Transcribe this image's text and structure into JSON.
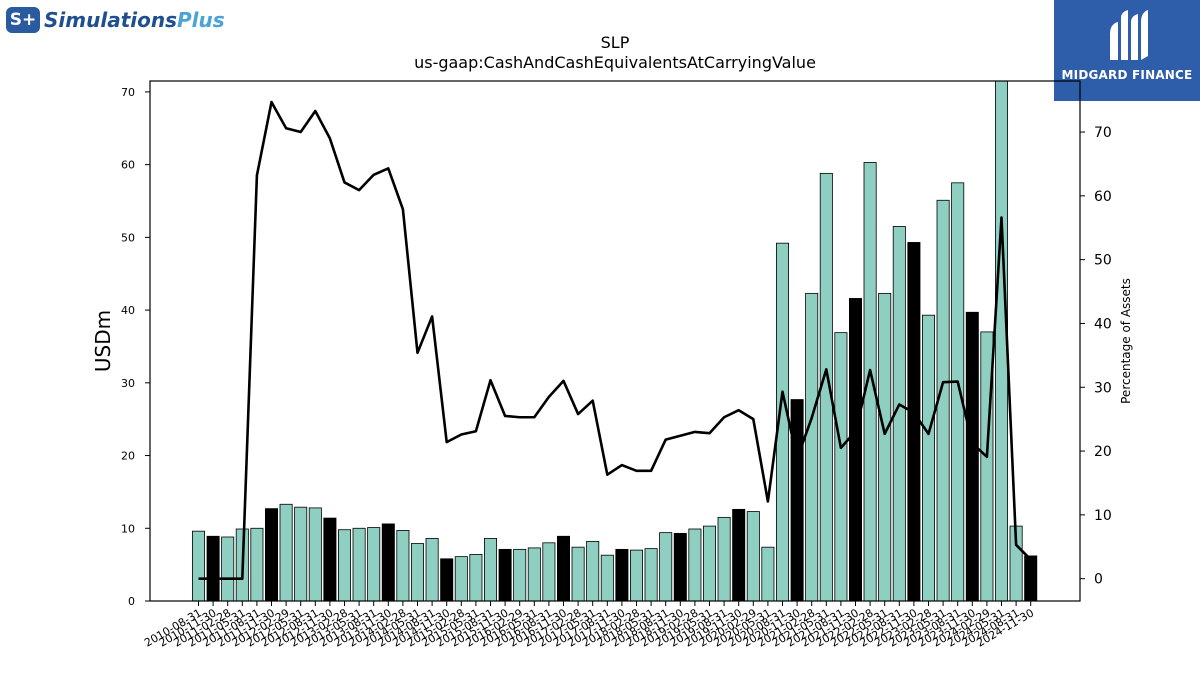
{
  "logos": {
    "left": {
      "badge_text": "S+",
      "name_main": "Simulations",
      "name_accent": "Plus"
    },
    "right": {
      "name": "MIDGARD FINANCE"
    }
  },
  "colors": {
    "bar": "#8ecfc2",
    "bar_highlight": "#000000",
    "line": "#000000",
    "accent_logo": "#2e5daa"
  },
  "chart_data": {
    "type": "bar",
    "title": "SLP",
    "subtitle": "us-gaap:CashAndCashEquivalentsAtCarryingValue",
    "ylabel": "USDm",
    "y2label": "Percentage of Assets",
    "ylim": [
      0,
      71.5
    ],
    "y2lim": [
      -3.5,
      78
    ],
    "yticks": [
      0,
      10,
      20,
      30,
      40,
      50,
      60,
      70
    ],
    "y2ticks": [
      0,
      10,
      20,
      30,
      40,
      50,
      60,
      70
    ],
    "categories": [
      "2010-08-31",
      "2010-11-30",
      "2011-02-28",
      "2011-05-31",
      "2011-08-31",
      "2011-11-30",
      "2012-02-29",
      "2012-05-31",
      "2012-08-31",
      "2012-11-30",
      "2013-02-28",
      "2013-05-31",
      "2013-08-31",
      "2013-11-30",
      "2014-02-28",
      "2014-05-31",
      "2014-08-31",
      "2014-11-30",
      "2015-02-28",
      "2015-05-31",
      "2015-08-31",
      "2015-11-30",
      "2016-02-29",
      "2016-05-31",
      "2016-08-31",
      "2016-11-30",
      "2017-02-28",
      "2017-05-31",
      "2017-08-31",
      "2017-11-30",
      "2018-02-28",
      "2018-05-31",
      "2018-08-31",
      "2018-11-30",
      "2019-02-28",
      "2019-05-31",
      "2019-08-31",
      "2019-11-30",
      "2020-02-29",
      "2020-05-31",
      "2020-08-31",
      "2020-11-30",
      "2021-02-28",
      "2021-05-31",
      "2021-08-31",
      "2021-11-30",
      "2022-02-28",
      "2022-05-31",
      "2022-08-31",
      "2022-11-30",
      "2023-02-28",
      "2023-05-31",
      "2023-08-31",
      "2023-11-30",
      "2024-02-29",
      "2024-05-31",
      "2024-08-31",
      "2024-11-30"
    ],
    "series": [
      {
        "type": "bar",
        "values": [
          9.6,
          8.9,
          8.8,
          9.9,
          10.0,
          12.7,
          13.3,
          12.9,
          12.8,
          11.4,
          9.8,
          10.0,
          10.1,
          10.6,
          9.7,
          7.9,
          8.6,
          5.8,
          6.1,
          6.4,
          8.6,
          7.1,
          7.1,
          7.3,
          8.0,
          8.9,
          7.4,
          8.2,
          6.3,
          7.1,
          7.0,
          7.2,
          9.4,
          9.3,
          9.9,
          10.3,
          11.5,
          12.6,
          12.3,
          7.4,
          49.2,
          27.7,
          42.3,
          58.8,
          36.9,
          41.6,
          60.3,
          42.3,
          51.5,
          49.3,
          39.3,
          55.1,
          57.5,
          39.7,
          37.0,
          71.5,
          10.3,
          6.2
        ],
        "highlight_indices": [
          1,
          5,
          9,
          13,
          17,
          21,
          25,
          29,
          33,
          37,
          41,
          45,
          49,
          53,
          57
        ]
      },
      {
        "type": "line",
        "axis": "right",
        "values": [
          0.0,
          0.0,
          0.0,
          0.0,
          63.2,
          74.7,
          70.6,
          70.0,
          73.3,
          69.0,
          62.1,
          60.9,
          63.3,
          64.3,
          57.9,
          35.4,
          41.1,
          21.4,
          22.6,
          23.1,
          31.1,
          25.5,
          25.3,
          25.3,
          28.5,
          31.0,
          25.8,
          27.9,
          16.3,
          17.8,
          16.9,
          16.9,
          21.8,
          22.4,
          23.0,
          22.8,
          25.3,
          26.4,
          25.0,
          12.1,
          29.3,
          18.8,
          25.2,
          32.8,
          20.5,
          23.1,
          32.7,
          22.7,
          27.3,
          26.0,
          22.7,
          30.8,
          30.9,
          21.2,
          19.1,
          56.6,
          5.3,
          3.0
        ]
      }
    ]
  }
}
